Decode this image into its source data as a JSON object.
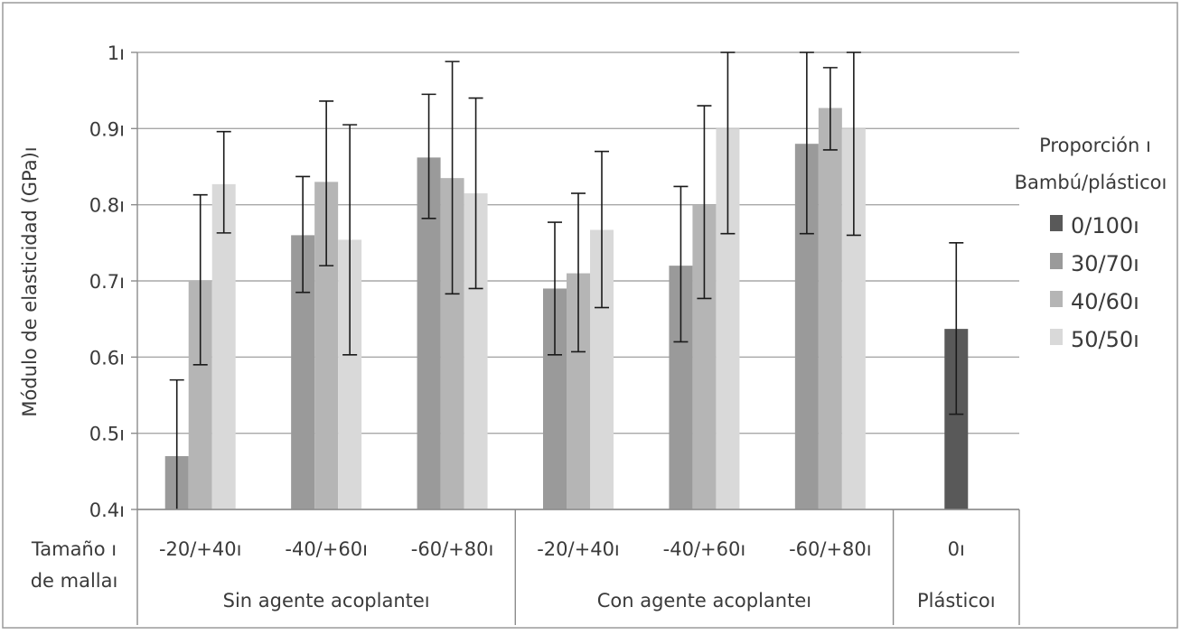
{
  "chart_data": {
    "type": "bar",
    "ylabel": "Módulo de elasticidad (GPa)ı",
    "ylim": [
      0.4,
      1.0
    ],
    "yticks": [
      0.4,
      0.5,
      0.6,
      0.7,
      0.8,
      0.9,
      1.0
    ],
    "ytick_labels": [
      "0.4ı",
      "0.5ı",
      "0.6ı",
      "0.7ı",
      "0.8ı",
      "0.9ı",
      "1ı"
    ],
    "grid": true,
    "xlabel_lines": [
      "Tamaño ı",
      "de mallaı"
    ],
    "categories": [
      "-20/+40ı",
      "-40/+60ı",
      "-60/+80ı",
      "-20/+40ı",
      "-40/+60ı",
      "-60/+80ı",
      "0ı"
    ],
    "groups": [
      {
        "label": "Sin agente acoplanteı",
        "categories": [
          0,
          1,
          2
        ]
      },
      {
        "label": "Con agente acoplanteı",
        "categories": [
          3,
          4,
          5
        ]
      },
      {
        "label": "Plásticoı",
        "categories": [
          6
        ]
      }
    ],
    "legend": {
      "title_lines": [
        "Proporción ı",
        "Bambú/plásticoı"
      ],
      "placement": "right"
    },
    "series": [
      {
        "name": "0/100ı",
        "color": "#595959",
        "values": [
          null,
          null,
          null,
          null,
          null,
          null,
          0.637
        ],
        "err_low": [
          null,
          null,
          null,
          null,
          null,
          null,
          0.525
        ],
        "err_high": [
          null,
          null,
          null,
          null,
          null,
          null,
          0.75
        ]
      },
      {
        "name": "30/70ı",
        "color": "#9a9a9a",
        "values": [
          0.47,
          0.76,
          0.862,
          0.69,
          0.72,
          0.88,
          null
        ],
        "err_low": [
          0.4,
          0.685,
          0.782,
          0.603,
          0.62,
          0.762,
          null
        ],
        "err_high": [
          0.57,
          0.837,
          0.945,
          0.777,
          0.824,
          1.0,
          null
        ]
      },
      {
        "name": "40/60ı",
        "color": "#b5b5b5",
        "values": [
          0.7,
          0.83,
          0.835,
          0.71,
          0.8,
          0.927,
          null
        ],
        "err_low": [
          0.59,
          0.72,
          0.683,
          0.607,
          0.677,
          0.872,
          null
        ],
        "err_high": [
          0.813,
          0.936,
          0.988,
          0.815,
          0.93,
          0.98,
          null
        ]
      },
      {
        "name": "50/50ı",
        "color": "#d9d9d9",
        "values": [
          0.827,
          0.754,
          0.815,
          0.767,
          0.9,
          0.9,
          null
        ],
        "err_low": [
          0.763,
          0.603,
          0.69,
          0.665,
          0.762,
          0.76,
          null
        ],
        "err_high": [
          0.896,
          0.905,
          0.94,
          0.87,
          1.0,
          1.0,
          null
        ]
      }
    ]
  }
}
